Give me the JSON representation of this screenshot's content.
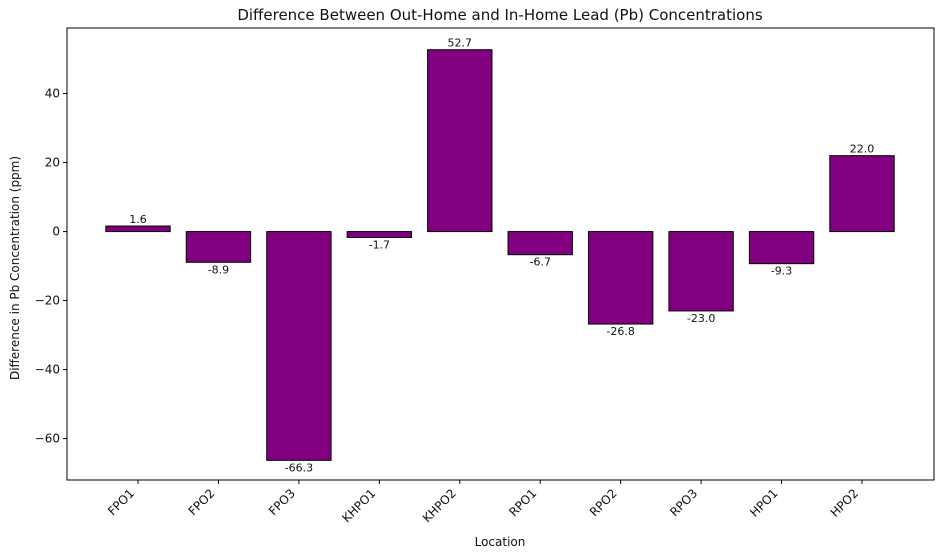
{
  "chart_data": {
    "type": "bar",
    "title": "Difference Between Out-Home and In-Home Lead (Pb) Concentrations",
    "xlabel": "Location",
    "ylabel": "Difference in Pb Concentration (ppm)",
    "categories": [
      "FPO1",
      "FPO2",
      "FPO3",
      "KHPO1",
      "KHPO2",
      "RPO1",
      "RPO2",
      "RPO3",
      "HPO1",
      "HPO2"
    ],
    "values": [
      1.6,
      -8.9,
      -66.3,
      -1.7,
      52.7,
      -6.7,
      -26.8,
      -23.0,
      -9.3,
      22.0
    ],
    "value_labels": [
      "1.6",
      "-8.9",
      "-66.3",
      "-1.7",
      "52.7",
      "-6.7",
      "-26.8",
      "-23.0",
      "-9.3",
      "22.0"
    ],
    "ylim": [
      -72,
      59
    ],
    "yticks": [
      -60,
      -40,
      -20,
      0,
      20,
      40
    ],
    "ytick_labels": [
      "−60",
      "−40",
      "−20",
      "0",
      "20",
      "40"
    ],
    "bar_color": "#800080",
    "edge_color": "#000000",
    "grid": false,
    "legend": false
  }
}
